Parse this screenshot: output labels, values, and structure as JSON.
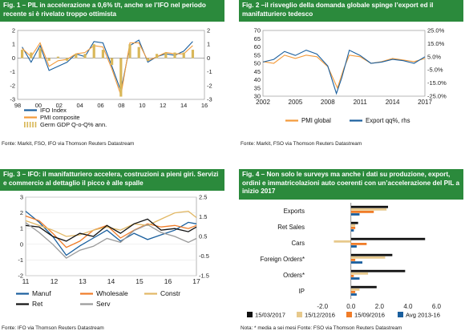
{
  "panels": [
    {
      "title": "Fig. 1 – PIL in accelerazione a 0,6% t/t, anche se l’IFO nel periodo recente si è rivelato troppo ottimista",
      "source": "Fonte: Markit, FSO, IFO via Thomson Reuters Datastream"
    },
    {
      "title": "Fig. 2 –il risveglio della domanda globale spinge l’export ed il manifatturiero tedesco",
      "source": "Fonte: Markit, FSO via Thomson Reuters Datastream"
    },
    {
      "title": "Fig. 3 – IFO: il manifatturiero accelera, costruzioni a pieni giri. Servizi e commercio al dettaglio il picco è alle spalle",
      "source": "Fonte: IFO via Thomson Reuters Datastream"
    },
    {
      "title": "Fig. 4 – Non solo le surveys ma anche i dati su produzione, export, ordini e immatricolazioni auto coerenti con un’accelerazione del PIL a inizio 2017",
      "source": "Nota: * media a sei mesi Fonte: FSO via Thomson Reuters Datastream"
    }
  ],
  "chart_data": [
    {
      "type": "line",
      "xticks": [
        "98",
        "00",
        "02",
        "04",
        "06",
        "08",
        "10",
        "12",
        "14",
        "16"
      ],
      "x_range": [
        1997.5,
        2018.3
      ],
      "left_axis": {
        "ticks": [
          "2",
          "1",
          "0",
          "-1",
          "-2",
          "-3"
        ],
        "ylim": [
          -3,
          2
        ]
      },
      "right_axis": {
        "ticks": [
          "2",
          "1",
          "0",
          "-1",
          "-2",
          "-3"
        ],
        "ylim": [
          -3,
          2
        ]
      },
      "series": [
        {
          "name": "IFO Index",
          "color": "#1a5f9e",
          "axis": "left",
          "points": [
            [
              1998,
              0.8
            ],
            [
              1999,
              -0.3
            ],
            [
              2000,
              0.9
            ],
            [
              2001,
              -0.9
            ],
            [
              2002,
              -0.6
            ],
            [
              2003,
              -0.3
            ],
            [
              2004,
              0.3
            ],
            [
              2005,
              0.1
            ],
            [
              2006,
              1.2
            ],
            [
              2007,
              1.1
            ],
            [
              2008,
              -0.6
            ],
            [
              2009,
              -2.4
            ],
            [
              2010,
              0.9
            ],
            [
              2011,
              1.3
            ],
            [
              2012,
              -0.3
            ],
            [
              2013,
              0.1
            ],
            [
              2014,
              0.3
            ],
            [
              2015,
              0.2
            ],
            [
              2016,
              0.5
            ],
            [
              2017,
              1.2
            ]
          ]
        },
        {
          "name": "PMI composite",
          "color": "#f39a3a",
          "axis": "left",
          "points": [
            [
              1998,
              0.7
            ],
            [
              1999,
              0.1
            ],
            [
              2000,
              1.1
            ],
            [
              2001,
              -0.6
            ],
            [
              2002,
              -0.2
            ],
            [
              2003,
              -0.1
            ],
            [
              2004,
              0.3
            ],
            [
              2005,
              0.4
            ],
            [
              2006,
              0.9
            ],
            [
              2007,
              0.8
            ],
            [
              2008,
              -0.8
            ],
            [
              2009,
              -2.7
            ],
            [
              2010,
              1.1
            ],
            [
              2011,
              1.1
            ],
            [
              2012,
              -0.2
            ],
            [
              2013,
              0.1
            ],
            [
              2014,
              0.4
            ],
            [
              2015,
              0.3
            ],
            [
              2016,
              0.3
            ],
            [
              2017,
              0.9
            ]
          ]
        },
        {
          "name": "Germ GDP Q-o-Q% ann.",
          "color": "#d9b85a",
          "axis": "right",
          "kind": "bar",
          "points": [
            [
              1998,
              0.6
            ],
            [
              1999,
              0.4
            ],
            [
              2000,
              0.7
            ],
            [
              2001,
              -0.2
            ],
            [
              2002,
              0.1
            ],
            [
              2003,
              -0.2
            ],
            [
              2004,
              0.3
            ],
            [
              2005,
              0.3
            ],
            [
              2006,
              1.0
            ],
            [
              2007,
              0.6
            ],
            [
              2008,
              -0.5
            ],
            [
              2009,
              -2.8
            ],
            [
              2010,
              1.0
            ],
            [
              2011,
              0.8
            ],
            [
              2012,
              -0.2
            ],
            [
              2013,
              0.3
            ],
            [
              2014,
              0.4
            ],
            [
              2015,
              0.4
            ],
            [
              2016,
              0.4
            ],
            [
              2017,
              0.6
            ]
          ]
        }
      ]
    },
    {
      "type": "line",
      "xticks": [
        "2002",
        "2005",
        "2008",
        "2011",
        "2014",
        "2017"
      ],
      "x_range": [
        2002,
        2017
      ],
      "left_axis": {
        "ticks": [
          "70",
          "65",
          "60",
          "55",
          "50",
          "45",
          "40",
          "35",
          "30"
        ],
        "ylim": [
          30,
          70
        ]
      },
      "right_axis": {
        "ticks": [
          "25.0%",
          "15.0%",
          "5.0%",
          "-5.0%",
          "-15.0%",
          "-25.0%"
        ],
        "ylim": [
          -25,
          25
        ]
      },
      "series": [
        {
          "name": "PMI global",
          "color": "#f39a3a",
          "axis": "left",
          "points": [
            [
              2002,
              51
            ],
            [
              2003,
              50
            ],
            [
              2004,
              55
            ],
            [
              2005,
              53
            ],
            [
              2006,
              55
            ],
            [
              2007,
              54
            ],
            [
              2008,
              48
            ],
            [
              2008.9,
              35
            ],
            [
              2009.5,
              47
            ],
            [
              2010,
              55
            ],
            [
              2011,
              54
            ],
            [
              2012,
              50
            ],
            [
              2013,
              51
            ],
            [
              2014,
              53
            ],
            [
              2015,
              52
            ],
            [
              2016,
              51
            ],
            [
              2017,
              53
            ]
          ]
        },
        {
          "name": "Export qq%, rhs",
          "color": "#1a5f9e",
          "axis": "right",
          "points": [
            [
              2002,
              1
            ],
            [
              2003,
              3
            ],
            [
              2004,
              9
            ],
            [
              2005,
              6
            ],
            [
              2006,
              10
            ],
            [
              2007,
              7
            ],
            [
              2008,
              -2
            ],
            [
              2008.8,
              -23
            ],
            [
              2009.3,
              -11
            ],
            [
              2010,
              10
            ],
            [
              2011,
              6
            ],
            [
              2012,
              0
            ],
            [
              2013,
              1
            ],
            [
              2014,
              3
            ],
            [
              2015,
              2
            ],
            [
              2016,
              0
            ],
            [
              2017,
              5
            ]
          ]
        }
      ]
    },
    {
      "type": "line",
      "xticks": [
        "11",
        "12",
        "13",
        "14",
        "15",
        "16",
        "17"
      ],
      "x_range": [
        2011,
        2017.3
      ],
      "left_axis": {
        "ticks": [
          "3",
          "2",
          "1",
          "0",
          "-1",
          "-2"
        ],
        "ylim": [
          -2,
          3
        ]
      },
      "right_axis": {
        "ticks": [
          "2.5",
          "1.5",
          "0.5",
          "-0.5",
          "-1.5"
        ],
        "ylim": [
          -1.5,
          2.5
        ]
      },
      "series": [
        {
          "name": "Manuf",
          "color": "#1a5f9e",
          "axis": "left",
          "points": [
            [
              2011,
              2.1
            ],
            [
              2011.5,
              1.4
            ],
            [
              2012,
              0.5
            ],
            [
              2012.5,
              -0.7
            ],
            [
              2013,
              -0.1
            ],
            [
              2013.5,
              0.4
            ],
            [
              2014,
              0.9
            ],
            [
              2014.5,
              0.2
            ],
            [
              2015,
              0.7
            ],
            [
              2015.5,
              0.3
            ],
            [
              2016,
              0.6
            ],
            [
              2016.5,
              0.9
            ],
            [
              2017,
              1.4
            ],
            [
              2017.3,
              1.3
            ]
          ]
        },
        {
          "name": "Wholesale",
          "color": "#f07c28",
          "axis": "left",
          "points": [
            [
              2011,
              1.8
            ],
            [
              2011.5,
              1.5
            ],
            [
              2012,
              0.7
            ],
            [
              2012.5,
              -0.2
            ],
            [
              2013,
              0.2
            ],
            [
              2013.5,
              0.9
            ],
            [
              2014,
              1.2
            ],
            [
              2014.5,
              0.4
            ],
            [
              2015,
              0.9
            ],
            [
              2015.5,
              1.3
            ],
            [
              2016,
              1.1
            ],
            [
              2016.5,
              1.2
            ],
            [
              2017,
              1.0
            ],
            [
              2017.3,
              1.2
            ]
          ]
        },
        {
          "name": "Constr",
          "color": "#e2b865",
          "axis": "left",
          "points": [
            [
              2011,
              1.5
            ],
            [
              2011.5,
              1.2
            ],
            [
              2012,
              0.9
            ],
            [
              2012.5,
              0.5
            ],
            [
              2013,
              0.6
            ],
            [
              2013.5,
              0.9
            ],
            [
              2014,
              1.1
            ],
            [
              2014.5,
              0.9
            ],
            [
              2015,
              1.3
            ],
            [
              2015.5,
              1.2
            ],
            [
              2016,
              1.6
            ],
            [
              2016.5,
              2.0
            ],
            [
              2017,
              2.1
            ],
            [
              2017.3,
              1.7
            ]
          ]
        },
        {
          "name": "Ret",
          "color": "#111111",
          "axis": "left",
          "points": [
            [
              2011,
              1.2
            ],
            [
              2011.5,
              1.1
            ],
            [
              2012,
              0.5
            ],
            [
              2012.5,
              0.2
            ],
            [
              2013,
              0.7
            ],
            [
              2013.5,
              0.5
            ],
            [
              2014,
              1.2
            ],
            [
              2014.5,
              0.7
            ],
            [
              2015,
              1.3
            ],
            [
              2015.5,
              1.6
            ],
            [
              2016,
              0.9
            ],
            [
              2016.5,
              1.0
            ],
            [
              2017,
              0.8
            ],
            [
              2017.3,
              1.1
            ]
          ]
        },
        {
          "name": "Serv",
          "color": "#9a9a9a",
          "axis": "right",
          "points": [
            [
              2011,
              1.2
            ],
            [
              2011.5,
              0.7
            ],
            [
              2012,
              0.1
            ],
            [
              2012.5,
              -0.6
            ],
            [
              2013,
              -0.2
            ],
            [
              2013.5,
              0.0
            ],
            [
              2014,
              0.4
            ],
            [
              2014.5,
              0.2
            ],
            [
              2015,
              0.8
            ],
            [
              2015.5,
              1.1
            ],
            [
              2016,
              0.7
            ],
            [
              2016.5,
              0.5
            ],
            [
              2017,
              0.2
            ],
            [
              2017.3,
              0.4
            ]
          ]
        }
      ]
    },
    {
      "type": "bar",
      "orientation": "horizontal",
      "categories": [
        "Exports",
        "Ret Sales",
        "Cars",
        "Foreign Orders*",
        "Orders*",
        "IP"
      ],
      "xticks": [
        "-2.0",
        "0.0",
        "2.0",
        "4.0",
        "6.0"
      ],
      "xlim": [
        -2.8,
        6.2
      ],
      "series": [
        {
          "name": "15/03/2017",
          "color": "#111111",
          "values": [
            2.6,
            0.5,
            5.2,
            2.9,
            3.8,
            1.8
          ]
        },
        {
          "name": "15/12/2016",
          "color": "#e7c98c",
          "values": [
            2.5,
            0.3,
            -1.2,
            2.4,
            1.2,
            0.6
          ]
        },
        {
          "name": "15/09/2016",
          "color": "#f07c28",
          "values": [
            1.6,
            0.3,
            1.1,
            0.3,
            0.2,
            0.3
          ]
        },
        {
          "name": "Avg 2013-16",
          "color": "#1a5f9e",
          "values": [
            0.6,
            0.2,
            0.4,
            0.8,
            0.6,
            0.4
          ]
        }
      ]
    }
  ]
}
